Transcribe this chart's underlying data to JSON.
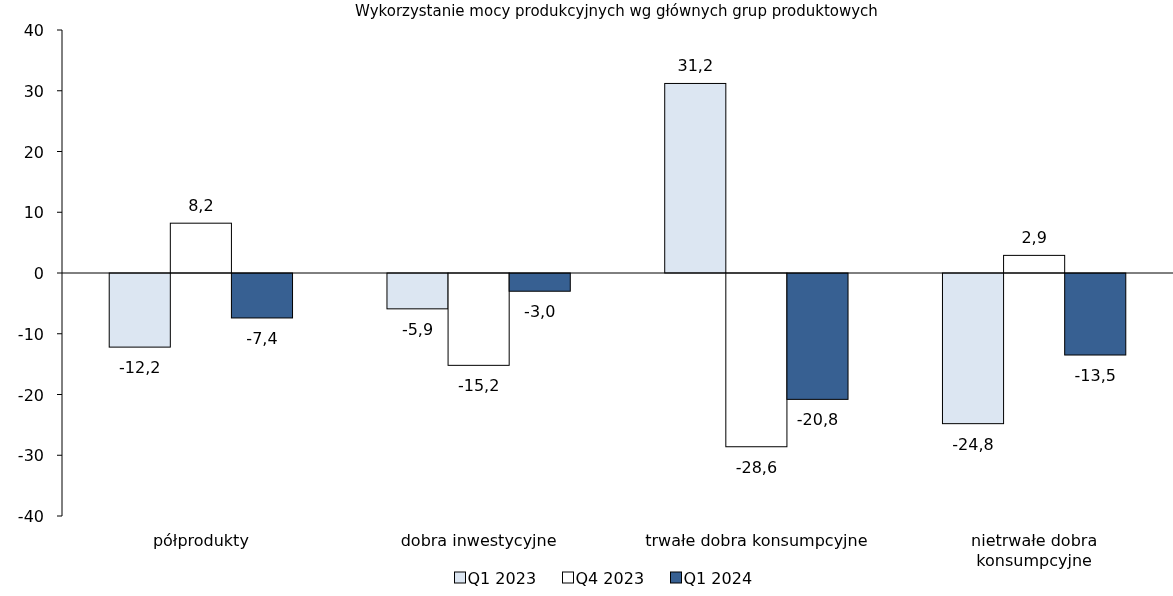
{
  "chart_data": {
    "type": "bar",
    "title": "Wykorzystanie mocy produkcyjnych wg głównych grup produktowych",
    "categories": [
      "półprodukty",
      "dobra inwestycyjne",
      "trwałe dobra konsumpcyjne",
      "nietrwałe dobra konsumpcyjne"
    ],
    "series": [
      {
        "name": "Q1 2023",
        "color": "#dce6f2",
        "values": [
          -12.2,
          -5.9,
          31.2,
          -24.8
        ],
        "value_labels": [
          "-12,2",
          "-5,9",
          "31,2",
          "-24,8"
        ]
      },
      {
        "name": "Q4 2023",
        "color": "#ffffff",
        "values": [
          8.2,
          -15.2,
          -28.6,
          2.9
        ],
        "value_labels": [
          "8,2",
          "-15,2",
          "-28,6",
          "2,9"
        ]
      },
      {
        "name": "Q1 2024",
        "color": "#376092",
        "values": [
          -7.4,
          -3.0,
          -20.8,
          -13.5
        ],
        "value_labels": [
          "-7,4",
          "-3,0",
          "-20,8",
          "-13,5"
        ]
      }
    ],
    "ylim": [
      -40,
      40
    ],
    "yticks": [
      -40,
      -30,
      -20,
      -10,
      0,
      10,
      20,
      30,
      40
    ],
    "legend": "bottom"
  }
}
